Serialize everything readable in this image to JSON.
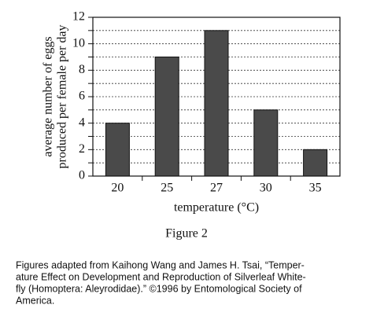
{
  "chart_data": {
    "type": "bar",
    "y_label": [
      "average number of eggs",
      "produced per female per day"
    ],
    "x_label": "temperature (°C)",
    "caption": "Figure 2",
    "categories": [
      "20",
      "25",
      "27",
      "30",
      "35"
    ],
    "values": [
      4,
      9,
      11,
      5,
      2
    ],
    "color": "#4a4a4a",
    "ylim": [
      0,
      12
    ],
    "yticks": [
      0,
      2,
      4,
      6,
      8,
      10,
      12
    ],
    "minor_yticks": [
      1,
      3,
      5,
      7,
      9,
      11
    ],
    "grid": true
  },
  "footnote": [
    "Figures adapted from Kaihong Wang and James H. Tsai, “Temper-",
    "ature Effect on Development and Reproduction of Silverleaf White-",
    "fly (Homoptera: Aleyrodidae).” ©1996 by Entomological Society of",
    "America."
  ]
}
